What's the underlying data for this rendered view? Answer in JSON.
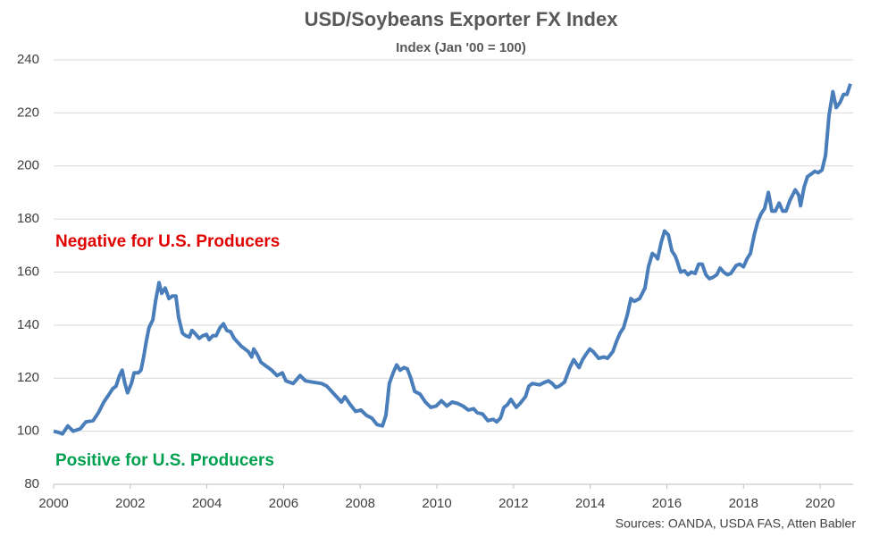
{
  "chart_data": {
    "type": "line",
    "title": "USD/Soybeans Exporter FX Index",
    "subtitle": "Index (Jan '00 = 100)",
    "annotations": [
      {
        "text": "Negative for U.S. Producers",
        "color": "#e00000"
      },
      {
        "text": "Positive for U.S. Producers",
        "color": "#00a050"
      }
    ],
    "source": "Sources: OANDA, USDA FAS, Atten Babler",
    "x": [
      2000.0,
      2000.14,
      2000.23,
      2000.37,
      2000.51,
      2000.7,
      2000.84,
      2001.03,
      2001.17,
      2001.31,
      2001.45,
      2001.54,
      2001.63,
      2001.72,
      2001.79,
      2001.86,
      2001.93,
      2002.03,
      2002.1,
      2002.21,
      2002.28,
      2002.35,
      2002.42,
      2002.49,
      2002.59,
      2002.66,
      2002.75,
      2002.82,
      2002.91,
      2003.01,
      2003.1,
      2003.19,
      2003.26,
      2003.36,
      2003.45,
      2003.54,
      2003.61,
      2003.71,
      2003.8,
      2003.89,
      2003.99,
      2004.06,
      2004.15,
      2004.24,
      2004.34,
      2004.43,
      2004.52,
      2004.62,
      2004.71,
      2004.9,
      2005.08,
      2005.17,
      2005.22,
      2005.31,
      2005.41,
      2005.55,
      2005.69,
      2005.83,
      2005.97,
      2006.06,
      2006.25,
      2006.43,
      2006.57,
      2006.76,
      2006.99,
      2007.13,
      2007.32,
      2007.51,
      2007.6,
      2007.74,
      2007.88,
      2008.02,
      2008.16,
      2008.3,
      2008.44,
      2008.58,
      2008.67,
      2008.76,
      2008.86,
      2008.95,
      2009.04,
      2009.14,
      2009.23,
      2009.32,
      2009.42,
      2009.56,
      2009.7,
      2009.84,
      2009.98,
      2010.12,
      2010.26,
      2010.4,
      2010.54,
      2010.68,
      2010.82,
      2010.96,
      2011.05,
      2011.19,
      2011.33,
      2011.47,
      2011.56,
      2011.66,
      2011.75,
      2011.84,
      2011.93,
      2012.07,
      2012.17,
      2012.31,
      2012.4,
      2012.49,
      2012.68,
      2012.82,
      2012.91,
      2013.01,
      2013.1,
      2013.19,
      2013.33,
      2013.47,
      2013.57,
      2013.71,
      2013.8,
      2013.89,
      2013.99,
      2014.08,
      2014.22,
      2014.36,
      2014.45,
      2014.59,
      2014.69,
      2014.78,
      2014.87,
      2014.97,
      2015.06,
      2015.15,
      2015.29,
      2015.43,
      2015.52,
      2015.62,
      2015.71,
      2015.76,
      2015.85,
      2015.94,
      2016.04,
      2016.13,
      2016.22,
      2016.27,
      2016.36,
      2016.46,
      2016.55,
      2016.64,
      2016.74,
      2016.83,
      2016.92,
      2017.02,
      2017.11,
      2017.2,
      2017.3,
      2017.39,
      2017.48,
      2017.58,
      2017.67,
      2017.81,
      2017.9,
      2018.0,
      2018.09,
      2018.18,
      2018.28,
      2018.37,
      2018.46,
      2018.55,
      2018.65,
      2018.74,
      2018.83,
      2018.93,
      2019.02,
      2019.11,
      2019.21,
      2019.35,
      2019.44,
      2019.49,
      2019.58,
      2019.67,
      2019.77,
      2019.86,
      2019.95,
      2020.05,
      2020.14,
      2020.23,
      2020.33,
      2020.42,
      2020.52,
      2020.61,
      2020.7,
      2020.79
    ],
    "series": [
      {
        "name": "USD/Soybeans Exporter FX Index",
        "color": "#4a7ebb",
        "values": [
          100,
          99.5,
          99,
          102,
          100,
          101,
          103.5,
          104,
          107,
          111,
          114,
          116,
          117,
          121,
          123,
          118,
          114.5,
          118,
          122,
          122,
          123,
          128,
          134,
          139,
          142,
          149,
          156,
          152,
          154,
          150,
          151,
          151,
          143,
          137,
          136,
          135.5,
          138,
          136.5,
          135,
          136,
          136.5,
          134.5,
          136,
          136,
          139,
          140.5,
          138,
          137.5,
          135,
          132,
          130,
          128,
          131,
          129,
          126,
          124.5,
          123,
          121,
          122,
          119,
          118,
          121,
          119,
          118.5,
          118,
          117,
          114,
          111,
          113,
          110,
          107.5,
          108,
          106,
          105,
          102.5,
          102,
          106,
          118,
          122,
          125,
          123,
          124,
          123.5,
          120,
          115,
          114,
          111,
          109,
          109.5,
          111.5,
          109.5,
          111,
          110.5,
          109.5,
          108,
          108.5,
          107,
          106.5,
          104,
          104.5,
          103.5,
          105,
          109,
          110,
          112,
          109,
          110.5,
          113,
          117,
          118,
          117.5,
          118.5,
          119,
          118,
          116.5,
          117,
          118.5,
          124,
          127,
          124,
          127,
          129,
          131,
          130,
          127.5,
          128,
          127.5,
          130,
          134,
          137,
          139,
          144,
          150,
          149,
          150,
          154,
          162,
          167,
          166,
          165,
          171,
          175.5,
          174,
          168,
          166,
          164,
          160,
          160.5,
          159,
          160,
          159.5,
          163,
          163,
          159,
          157.5,
          158,
          159,
          161.5,
          160,
          159,
          159.5,
          162.5,
          163,
          162,
          165,
          167,
          174,
          179,
          182,
          184,
          190,
          183,
          183,
          186,
          183,
          183,
          187,
          191,
          189,
          185,
          192,
          196,
          197,
          198,
          197.5,
          198.5,
          204,
          219,
          228,
          222,
          224,
          227,
          227,
          231
        ]
      }
    ],
    "xlim": [
      2000,
      2020.86
    ],
    "xticks": [
      2000,
      2002,
      2004,
      2006,
      2008,
      2010,
      2012,
      2014,
      2016,
      2018,
      2020
    ],
    "ylim": [
      80,
      240
    ],
    "yticks": [
      80,
      100,
      120,
      140,
      160,
      180,
      200,
      220,
      240
    ],
    "grid": true
  }
}
